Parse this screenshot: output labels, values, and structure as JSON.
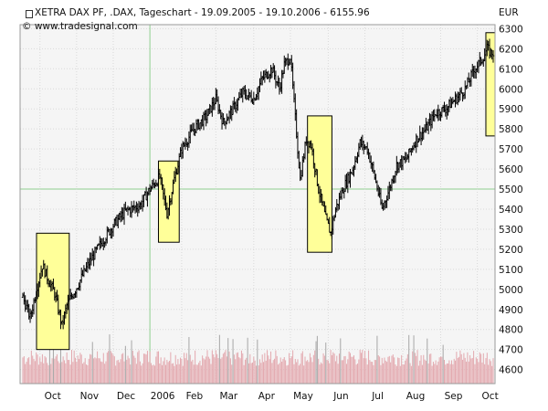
{
  "header": {
    "title": "XETRA DAX PF, .DAX, Tageschart - 19.09.2005 - 19.10.2006 - 6155.96",
    "source": "© www.tradesignal.com",
    "currency": "EUR",
    "symbol_icon": "chart-symbol-icon"
  },
  "colors": {
    "background": "#ffffff",
    "plot_background": "#f5f5f5",
    "grid": "#d9d9d9",
    "major_grid": "#8fcf8f",
    "price": "#000000",
    "highlight_fill": "#ffff99",
    "highlight_stroke": "#000000",
    "volume_normal": "#e3a8ae",
    "volume_high": "#a6a6a6"
  },
  "chart_data": {
    "type": "ohlc",
    "title": "XETRA DAX PF, .DAX, Tageschart - 19.09.2005 - 19.10.2006 - 6155.96",
    "ylabel": "EUR",
    "ylim": [
      4530,
      6320
    ],
    "y_ticks": [
      4600,
      4700,
      4800,
      4900,
      5000,
      5100,
      5200,
      5300,
      5400,
      5500,
      5600,
      5700,
      5800,
      5900,
      6000,
      6100,
      6200,
      6300
    ],
    "x_ticks": [
      {
        "label": "Oct",
        "day": 14
      },
      {
        "label": "Nov",
        "day": 44
      },
      {
        "label": "Dec",
        "day": 74
      },
      {
        "label": "2006",
        "day": 104
      },
      {
        "label": "Feb",
        "day": 130
      },
      {
        "label": "Mar",
        "day": 158
      },
      {
        "label": "Apr",
        "day": 189
      },
      {
        "label": "May",
        "day": 219
      },
      {
        "label": "Jun",
        "day": 250
      },
      {
        "label": "Jul",
        "day": 280
      },
      {
        "label": "Aug",
        "day": 311
      },
      {
        "label": "Sep",
        "day": 342
      },
      {
        "label": "Oct",
        "day": 372
      }
    ],
    "major_x_days": [
      104
    ],
    "major_y_values": [
      5500
    ],
    "price_anchors": [
      [
        0,
        4960
      ],
      [
        6,
        4860
      ],
      [
        12,
        5020
      ],
      [
        16,
        5120
      ],
      [
        20,
        5060
      ],
      [
        26,
        4980
      ],
      [
        32,
        4820
      ],
      [
        36,
        4920
      ],
      [
        44,
        5010
      ],
      [
        54,
        5130
      ],
      [
        64,
        5230
      ],
      [
        74,
        5320
      ],
      [
        84,
        5390
      ],
      [
        96,
        5420
      ],
      [
        104,
        5500
      ],
      [
        112,
        5560
      ],
      [
        118,
        5380
      ],
      [
        124,
        5550
      ],
      [
        130,
        5700
      ],
      [
        140,
        5800
      ],
      [
        150,
        5860
      ],
      [
        158,
        5950
      ],
      [
        164,
        5830
      ],
      [
        172,
        5900
      ],
      [
        180,
        5980
      ],
      [
        189,
        5950
      ],
      [
        196,
        6050
      ],
      [
        204,
        6100
      ],
      [
        210,
        6000
      ],
      [
        214,
        6120
      ],
      [
        219,
        6160
      ],
      [
        225,
        5700
      ],
      [
        227,
        5550
      ],
      [
        232,
        5750
      ],
      [
        236,
        5720
      ],
      [
        242,
        5500
      ],
      [
        248,
        5350
      ],
      [
        252,
        5280
      ],
      [
        256,
        5400
      ],
      [
        262,
        5500
      ],
      [
        270,
        5600
      ],
      [
        276,
        5730
      ],
      [
        282,
        5700
      ],
      [
        288,
        5560
      ],
      [
        294,
        5400
      ],
      [
        300,
        5500
      ],
      [
        306,
        5620
      ],
      [
        314,
        5650
      ],
      [
        322,
        5750
      ],
      [
        330,
        5800
      ],
      [
        338,
        5880
      ],
      [
        346,
        5900
      ],
      [
        356,
        5960
      ],
      [
        362,
        6000
      ],
      [
        370,
        6100
      ],
      [
        376,
        6150
      ],
      [
        380,
        6200
      ],
      [
        383,
        6180
      ]
    ],
    "volume_range": [
      4530,
      4780
    ],
    "highlights": [
      {
        "from_day": 5,
        "to_day": 38,
        "low": 4700,
        "high": 5280
      },
      {
        "from_day": 111,
        "to_day": 128,
        "low": 5235,
        "high": 5640
      },
      {
        "from_day": 233,
        "to_day": 253,
        "low": 5185,
        "high": 5865
      },
      {
        "from_day": 379,
        "to_day": 392,
        "low": 5765,
        "high": 6280
      }
    ],
    "total_days": 385
  }
}
